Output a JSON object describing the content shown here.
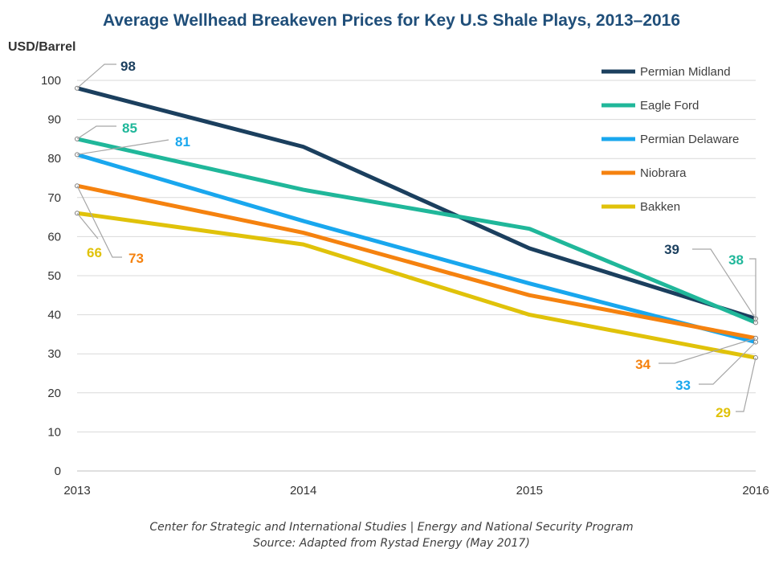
{
  "chart_data": {
    "type": "line",
    "title": "Average Wellhead Breakeven Prices for Key U.S Shale Plays, 2013–2016",
    "ylabel": "USD/Barrel",
    "xlabel": "",
    "categories": [
      "2013",
      "2014",
      "2015",
      "2016"
    ],
    "ylim": [
      0,
      100
    ],
    "yticks": [
      0,
      10,
      20,
      30,
      40,
      50,
      60,
      70,
      80,
      90,
      100
    ],
    "grid": true,
    "legend_position": "top-right",
    "series": [
      {
        "name": "Permian Midland",
        "color": "#1b3f5e",
        "values": [
          98,
          83,
          57,
          39
        ]
      },
      {
        "name": "Eagle Ford",
        "color": "#20b79a",
        "values": [
          85,
          72,
          62,
          38
        ]
      },
      {
        "name": "Permian Delaware",
        "color": "#19a7ee",
        "values": [
          81,
          64,
          48,
          33
        ]
      },
      {
        "name": "Niobrara",
        "color": "#f5820f",
        "values": [
          73,
          61,
          45,
          34
        ]
      },
      {
        "name": "Bakken",
        "color": "#e0c20a",
        "values": [
          66,
          58,
          40,
          29
        ]
      }
    ],
    "data_labels": [
      {
        "text": "98",
        "series": "Permian Midland",
        "x": "2013"
      },
      {
        "text": "85",
        "series": "Eagle Ford",
        "x": "2013"
      },
      {
        "text": "81",
        "series": "Permian Delaware",
        "x": "2013"
      },
      {
        "text": "66",
        "series": "Bakken",
        "x": "2013"
      },
      {
        "text": "73",
        "series": "Niobrara",
        "x": "2013"
      },
      {
        "text": "39",
        "series": "Permian Midland",
        "x": "2016"
      },
      {
        "text": "38",
        "series": "Eagle Ford",
        "x": "2016"
      },
      {
        "text": "34",
        "series": "Niobrara",
        "x": "2016"
      },
      {
        "text": "33",
        "series": "Permian Delaware",
        "x": "2016"
      },
      {
        "text": "29",
        "series": "Bakken",
        "x": "2016"
      }
    ]
  },
  "footer": {
    "line1": "Center for Strategic and International Studies | Energy and National Security Program",
    "line2": "Source: Adapted from Rystad Energy (May 2017)"
  },
  "colors": {
    "gridline": "#d9d9d9",
    "axis": "#bfbfbf",
    "leader": "#a6a6a6",
    "title": "#1f4e79"
  }
}
